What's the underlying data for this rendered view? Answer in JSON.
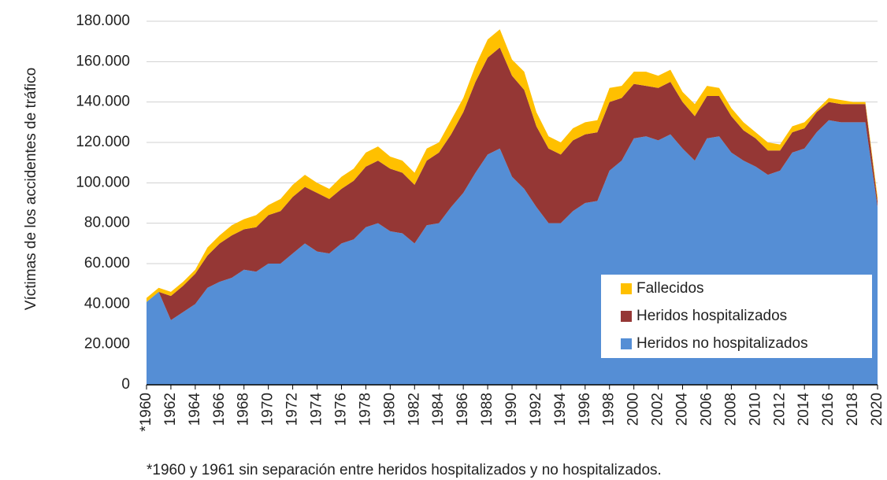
{
  "chart_data": {
    "type": "stacked-area",
    "y_label": "Víctimas de los accidentes de tráfico",
    "footnote": "*1960 y 1961 sin separación entre heridos hospitalizados y no hospitalizados.",
    "x": [
      1960,
      1961,
      1962,
      1963,
      1964,
      1965,
      1966,
      1967,
      1968,
      1969,
      1970,
      1971,
      1972,
      1973,
      1974,
      1975,
      1976,
      1977,
      1978,
      1979,
      1980,
      1981,
      1982,
      1983,
      1984,
      1985,
      1986,
      1987,
      1988,
      1989,
      1990,
      1991,
      1992,
      1993,
      1994,
      1995,
      1996,
      1997,
      1998,
      1999,
      2000,
      2001,
      2002,
      2003,
      2004,
      2005,
      2006,
      2007,
      2008,
      2009,
      2010,
      2011,
      2012,
      2013,
      2014,
      2015,
      2016,
      2017,
      2018,
      2019,
      2020
    ],
    "series": [
      {
        "name": "Heridos no hospitalizados",
        "color": "#558ed5",
        "values": [
          41000,
          46000,
          32000,
          36000,
          40000,
          48000,
          51000,
          53000,
          57000,
          56000,
          60000,
          60000,
          65000,
          70000,
          66000,
          65000,
          70000,
          72000,
          78000,
          80000,
          76000,
          75000,
          70000,
          79000,
          80000,
          88000,
          95000,
          105000,
          114000,
          117000,
          103000,
          97000,
          88000,
          80000,
          80000,
          86000,
          90000,
          91000,
          106000,
          111000,
          122000,
          123000,
          121000,
          124000,
          117000,
          111000,
          122000,
          123000,
          115000,
          111000,
          108000,
          104000,
          106000,
          115000,
          117000,
          125000,
          131000,
          130000,
          130000,
          130000,
          88000
        ]
      },
      {
        "name": "Heridos hospitalizados",
        "color": "#953735",
        "values": [
          0,
          0,
          12000,
          13000,
          15000,
          16000,
          19000,
          21000,
          20000,
          22000,
          24000,
          26000,
          28000,
          28000,
          29000,
          27000,
          27000,
          29000,
          30000,
          31000,
          31000,
          30000,
          29000,
          32000,
          35000,
          36000,
          40000,
          45000,
          48000,
          50000,
          50000,
          49000,
          40000,
          37000,
          34000,
          35000,
          34000,
          34000,
          34000,
          31000,
          27000,
          25000,
          26000,
          26000,
          23000,
          22000,
          21000,
          20000,
          18000,
          15000,
          14000,
          12000,
          10000,
          10000,
          10000,
          10000,
          9000,
          9000,
          9000,
          9000,
          3000
        ]
      },
      {
        "name": "Fallecidos",
        "color": "#ffc000",
        "values": [
          2000,
          2000,
          2000,
          2000,
          2000,
          4000,
          4000,
          5000,
          5000,
          6000,
          5000,
          6000,
          6000,
          6000,
          5000,
          5000,
          6000,
          6000,
          7000,
          7000,
          6000,
          6000,
          6000,
          6000,
          5000,
          7000,
          7000,
          8000,
          9000,
          9000,
          8000,
          9000,
          7000,
          6000,
          6000,
          6000,
          6000,
          6000,
          7000,
          6000,
          6000,
          7000,
          6000,
          6000,
          5000,
          6000,
          5000,
          4000,
          4000,
          4000,
          3000,
          4000,
          3000,
          3000,
          3000,
          1000,
          2000,
          2000,
          1000,
          1000,
          2000
        ]
      }
    ],
    "xlim": [
      1960,
      2020
    ],
    "xticks": [
      {
        "value": 1960,
        "label": "*1960"
      },
      1962,
      1964,
      1966,
      1968,
      1970,
      1972,
      1974,
      1976,
      1978,
      1980,
      1982,
      1984,
      1986,
      1988,
      1990,
      1992,
      1994,
      1996,
      1998,
      2000,
      2002,
      2004,
      2006,
      2008,
      2010,
      2012,
      2014,
      2016,
      2018,
      2020
    ],
    "ylim": [
      0,
      180000
    ],
    "yticks": [
      0,
      {
        "value": 20000,
        "label": "20.000"
      },
      {
        "value": 40000,
        "label": "40.000"
      },
      {
        "value": 60000,
        "label": "60.000"
      },
      {
        "value": 80000,
        "label": "80.000"
      },
      {
        "value": 100000,
        "label": "100.000"
      },
      {
        "value": 120000,
        "label": "120.000"
      },
      {
        "value": 140000,
        "label": "140.000"
      },
      {
        "value": 160000,
        "label": "160.000"
      },
      {
        "value": 180000,
        "label": "180.000"
      }
    ],
    "grid": true,
    "legend": "lower-right"
  }
}
